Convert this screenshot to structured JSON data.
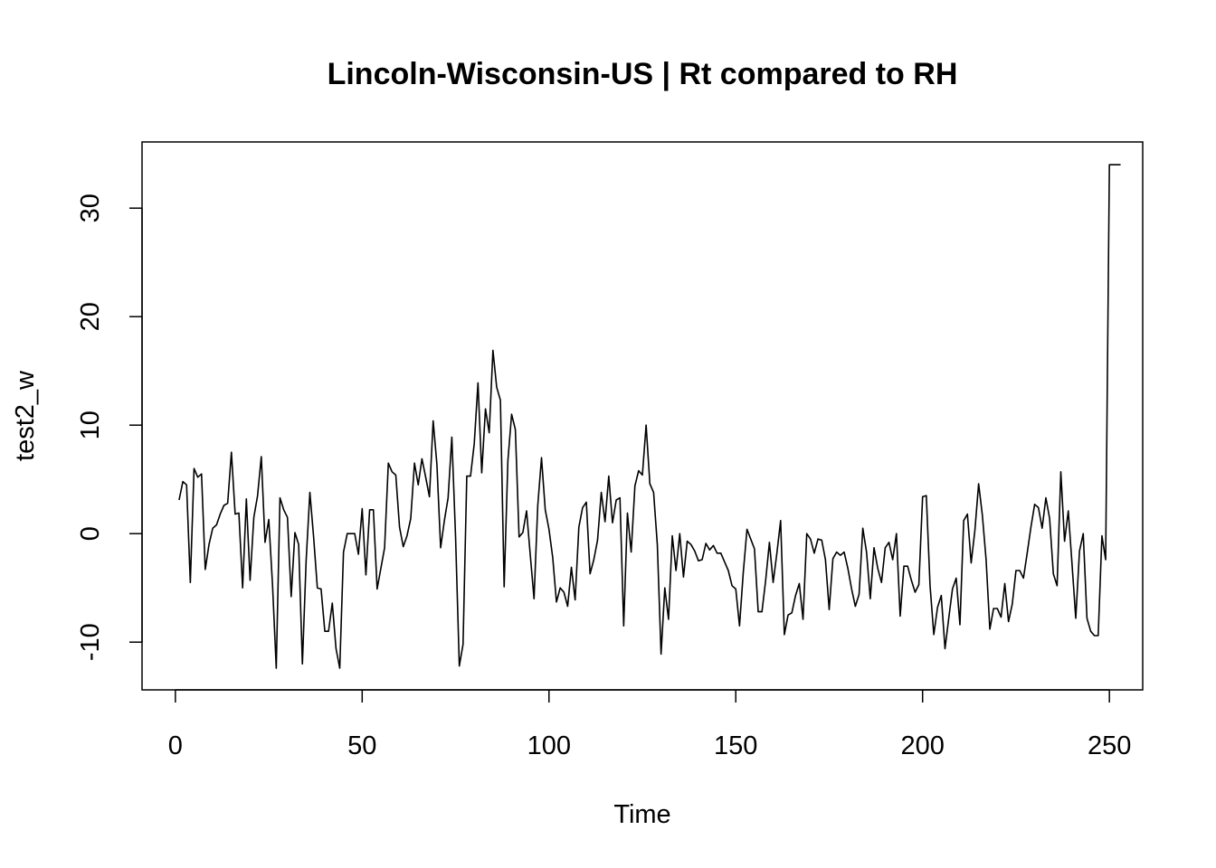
{
  "chart_data": {
    "type": "line",
    "title": "Lincoln-Wisconsin-US | Rt compared to RH",
    "xlabel": "Time",
    "ylabel": "test2_w",
    "xlim": [
      -8.92,
      258.92
    ],
    "ylim": [
      -14.4,
      36.1
    ],
    "x_ticks": [
      0,
      50,
      100,
      150,
      200,
      250
    ],
    "x_tick_labels": [
      "0",
      "50",
      "100",
      "150",
      "200",
      "250"
    ],
    "y_ticks": [
      -10,
      0,
      10,
      20,
      30
    ],
    "y_tick_labels": [
      "-10",
      "0",
      "10",
      "20",
      "30"
    ],
    "grid": false,
    "legend": "none",
    "line_color": "#000000",
    "series": [
      {
        "x_start": 1,
        "x_step": 1,
        "values": [
          3.1,
          4.8,
          4.5,
          -4.5,
          6.0,
          5.2,
          5.5,
          -3.3,
          -1.0,
          0.5,
          0.8,
          1.8,
          2.6,
          2.8,
          7.5,
          1.8,
          1.9,
          -5.0,
          3.2,
          -4.3,
          1.5,
          3.5,
          7.1,
          -0.8,
          1.3,
          -4.7,
          -12.4,
          3.3,
          2.2,
          1.5,
          -5.8,
          0.1,
          -1.0,
          -12.0,
          -2.5,
          3.8,
          -0.3,
          -5.0,
          -5.1,
          -9.0,
          -9.0,
          -6.4,
          -10.6,
          -12.4,
          -1.7,
          0.0,
          0.0,
          0.0,
          -1.9,
          2.3,
          -3.8,
          2.2,
          2.2,
          -5.1,
          -3.2,
          -1.3,
          6.5,
          5.7,
          5.4,
          0.6,
          -1.2,
          -0.2,
          1.4,
          6.5,
          4.5,
          6.9,
          5.2,
          3.4,
          10.4,
          6.4,
          -1.3,
          1.2,
          3.3,
          8.9,
          -0.3,
          -12.2,
          -10.2,
          5.3,
          5.3,
          8.3,
          13.9,
          5.6,
          11.5,
          9.3,
          16.9,
          13.5,
          12.3,
          -4.9,
          6.7,
          11.0,
          9.6,
          -0.3,
          0.1,
          2.1,
          -2.0,
          -6.0,
          2.6,
          7.0,
          2.2,
          0.4,
          -2.2,
          -6.3,
          -5.0,
          -5.4,
          -6.7,
          -3.1,
          -6.1,
          0.6,
          2.4,
          2.9,
          -3.7,
          -2.4,
          -0.6,
          3.8,
          1.1,
          5.3,
          1.0,
          3.1,
          3.3,
          -8.5,
          1.9,
          -1.7,
          4.4,
          5.8,
          5.4,
          10.0,
          4.6,
          3.8,
          -1.0,
          -11.1,
          -5.0,
          -7.9,
          -0.2,
          -3.4,
          0.0,
          -4.0,
          -0.7,
          -1.0,
          -1.6,
          -2.5,
          -2.4,
          -0.9,
          -1.5,
          -1.1,
          -1.8,
          -1.8,
          -2.6,
          -3.4,
          -4.8,
          -5.1,
          -8.5,
          -3.6,
          0.4,
          -0.5,
          -1.4,
          -7.2,
          -7.2,
          -4.3,
          -0.8,
          -4.5,
          -1.8,
          1.2,
          -9.3,
          -7.5,
          -7.3,
          -5.7,
          -4.6,
          -7.9,
          0.0,
          -0.5,
          -1.8,
          -0.5,
          -0.6,
          -2.4,
          -7.0,
          -2.3,
          -1.7,
          -2.0,
          -1.7,
          -3.2,
          -5.1,
          -6.7,
          -5.6,
          0.5,
          -1.7,
          -6.0,
          -1.3,
          -3.2,
          -4.5,
          -1.3,
          -0.8,
          -2.4,
          0.0,
          -7.6,
          -3.0,
          -3.0,
          -4.3,
          -5.4,
          -4.7,
          3.4,
          3.5,
          -4.8,
          -9.3,
          -6.8,
          -5.7,
          -10.6,
          -7.8,
          -5.1,
          -4.1,
          -8.4,
          1.2,
          1.8,
          -2.7,
          0.3,
          4.6,
          1.7,
          -2.4,
          -8.8,
          -6.9,
          -6.9,
          -7.7,
          -4.6,
          -8.1,
          -6.5,
          -3.4,
          -3.4,
          -4.1,
          -1.8,
          0.6,
          2.7,
          2.4,
          0.5,
          3.3,
          1.4,
          -3.7,
          -4.8,
          5.7,
          -0.7,
          2.1,
          -2.8,
          -7.8,
          -1.6,
          0.0,
          -7.8,
          -9.0,
          -9.4,
          -9.4,
          -0.2,
          -2.4,
          34.0,
          34.0,
          34.0,
          34.0
        ]
      }
    ]
  }
}
